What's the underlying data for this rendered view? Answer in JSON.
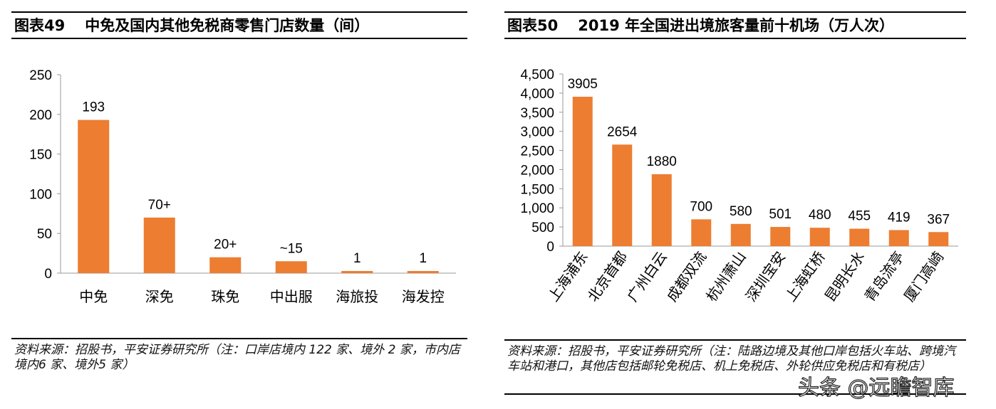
{
  "chart_data": [
    {
      "type": "bar",
      "title_num": "图表49",
      "title": "中免及国内其他免税商零售门店数量（间）",
      "categories": [
        "中免",
        "深免",
        "珠免",
        "中出服",
        "海旅投",
        "海发控"
      ],
      "values": [
        193,
        70,
        20,
        15,
        1,
        1
      ],
      "data_labels": [
        "193",
        "70+",
        "20+",
        "~15",
        "1",
        "1"
      ],
      "ylim": [
        0,
        250
      ],
      "yticks": [
        0,
        50,
        100,
        150,
        200,
        250
      ],
      "ytick_labels": [
        "0",
        "50",
        "100",
        "150",
        "200",
        "250"
      ],
      "bar_color": "#ED7D31",
      "source": "资料来源：招股书，平安证券研究所（注：口岸店境内 122 家、境外 2 家，市内店境内6 家、境外5 家）"
    },
    {
      "type": "bar",
      "title_num": "图表50",
      "title": "2019 年全国进出境旅客量前十机场（万人次）",
      "categories": [
        "上海浦东",
        "北京首都",
        "广州白云",
        "成都双流",
        "杭州萧山",
        "深圳宝安",
        "上海虹桥",
        "昆明长水",
        "青岛流亭",
        "厦门高崎"
      ],
      "values": [
        3905,
        2654,
        1880,
        700,
        580,
        501,
        480,
        455,
        419,
        367
      ],
      "data_labels": [
        "3905",
        "2654",
        "1880",
        "700",
        "580",
        "501",
        "480",
        "455",
        "419",
        "367"
      ],
      "ylim": [
        0,
        4500
      ],
      "yticks": [
        0,
        500,
        1000,
        1500,
        2000,
        2500,
        3000,
        3500,
        4000,
        4500
      ],
      "ytick_labels": [
        "0",
        "500",
        "1,000",
        "1,500",
        "2,000",
        "2,500",
        "3,000",
        "3,500",
        "4,000",
        "4,500"
      ],
      "bar_color": "#ED7D31",
      "source": "资料来源：招股书，平安证券研究所（注：陆路边境及其他口岸包括火车站、跨境汽车站和港口，其他店包括邮轮免税店、机上免税店、外轮供应免税店和有税店）"
    }
  ],
  "watermark": "头条 @远瞻智库"
}
